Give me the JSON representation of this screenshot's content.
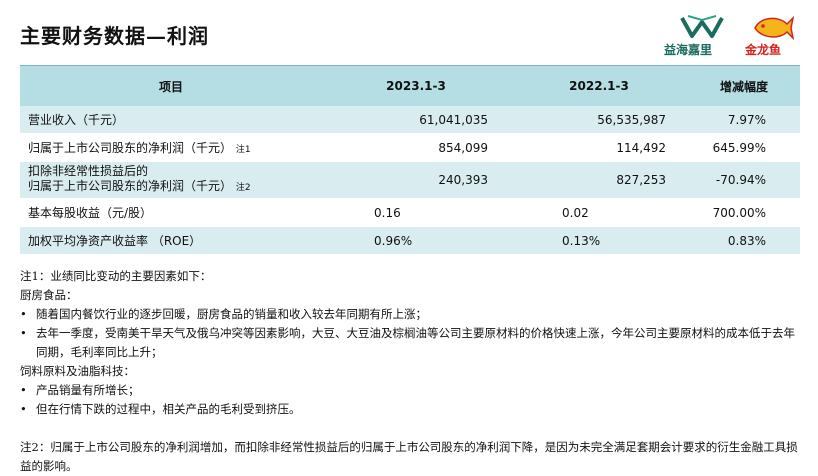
{
  "title": "主要财务数据—利润",
  "logos": {
    "left_text": "益海嘉里",
    "right_text": "金龙鱼",
    "colors": {
      "left": "#1b6b5e",
      "right": "#d4231f"
    }
  },
  "table": {
    "headers": [
      "项目",
      "2023.1-3",
      "2022.1-3",
      "增减幅度"
    ],
    "rows": [
      {
        "label": "营业收入（千元）",
        "note": "",
        "v2023": "61,041,035",
        "v2022": "56,535,987",
        "change": "7.97%"
      },
      {
        "label": "归属于上市公司股东的净利润（千元）",
        "note": "注1",
        "v2023": "854,099",
        "v2022": "114,492",
        "change": "645.99%"
      },
      {
        "label_line1": "扣除非经常性损益后的",
        "label_line2": "归属于上市公司股东的净利润（千元）",
        "note": "注2",
        "v2023": "240,393",
        "v2022": "827,253",
        "change": "-70.94%"
      },
      {
        "label": "基本每股收益（元/股）",
        "note": "",
        "v2023": "0.16",
        "v2022": "0.02",
        "change": "700.00%"
      },
      {
        "label": "加权平均净资产收益率  （ROE）",
        "note": "",
        "v2023": "0.96%",
        "v2022": "0.13%",
        "change": "0.83%"
      }
    ],
    "colors": {
      "header_bg": "#b4dde4",
      "row_bg": "#d9ecf0"
    }
  },
  "notes": {
    "n1_title": "注1：业绩同比变动的主要因素如下：",
    "kitchen_title": "厨房食品：",
    "kitchen_bullets": [
      "随着国内餐饮行业的逐步回暖，厨房食品的销量和收入较去年同期有所上涨；",
      "去年一季度，受南美干旱天气及俄乌冲突等因素影响，大豆、大豆油及棕榈油等公司主要原材料的价格快速上涨，今年公司主要原材料的成本低于去年同期，毛利率同比上升；"
    ],
    "feed_title": "饲料原料及油脂科技：",
    "feed_bullets": [
      "产品销量有所增长；",
      "但在行情下跌的过程中，相关产品的毛利受到挤压。"
    ],
    "n2": "注2：归属于上市公司股东的净利润增加，而扣除非经常性损益后的归属于上市公司股东的净利润下降，是因为未完全满足套期会计要求的衍生金融工具损益的影响。",
    "bullet_char": "•"
  }
}
